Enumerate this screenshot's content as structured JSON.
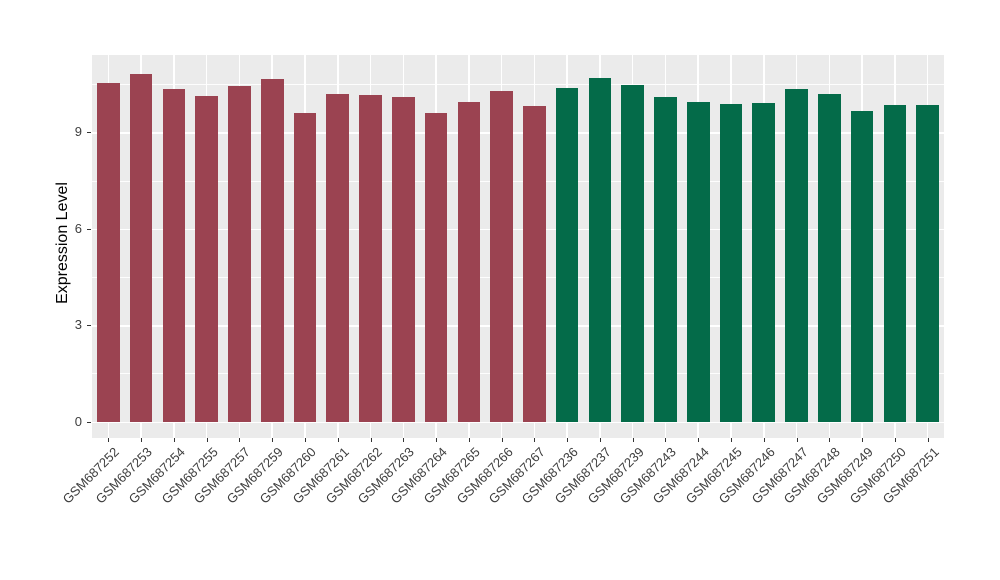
{
  "figure": {
    "background_color": "#FFFFFF",
    "panel_background_color": "#EBEBEB",
    "gridline_color": "#FFFFFF",
    "axis_text_color": "#3d3d3d",
    "axis_title_color": "#000000"
  },
  "chart_data": {
    "type": "bar",
    "title": "",
    "xlabel": "",
    "ylabel": "Expression Level",
    "ylim": [
      -0.51,
      11.41
    ],
    "yticks": [
      0,
      3,
      6,
      9
    ],
    "minor_gridlines": [
      1.5,
      4.5,
      7.5,
      10.5
    ],
    "grid": true,
    "legend_position": "none",
    "x_tick_rotation_deg": 45,
    "series": [
      {
        "color": "#9B4351",
        "categories": [
          "GSM687252",
          "GSM687253",
          "GSM687254",
          "GSM687255",
          "GSM687257",
          "GSM687259",
          "GSM687260",
          "GSM687261",
          "GSM687262",
          "GSM687263",
          "GSM687264",
          "GSM687265",
          "GSM687266",
          "GSM687267"
        ],
        "values": [
          10.55,
          10.81,
          10.35,
          10.13,
          10.45,
          10.66,
          9.62,
          10.21,
          10.16,
          10.1,
          9.59,
          9.95,
          10.28,
          9.81
        ]
      },
      {
        "color": "#046B49",
        "categories": [
          "GSM687236",
          "GSM687237",
          "GSM687239",
          "GSM687243",
          "GSM687244",
          "GSM687245",
          "GSM687246",
          "GSM687247",
          "GSM687248",
          "GSM687249",
          "GSM687250",
          "GSM687251"
        ],
        "values": [
          10.38,
          10.68,
          10.49,
          10.11,
          9.94,
          9.9,
          9.93,
          10.35,
          10.19,
          9.66,
          9.85,
          9.85
        ]
      }
    ]
  }
}
